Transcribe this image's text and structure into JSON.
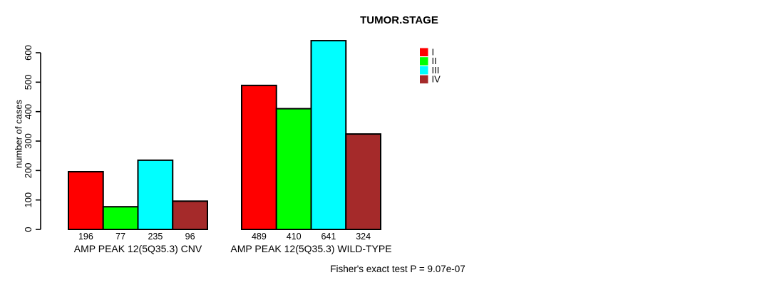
{
  "chart_data": {
    "type": "bar",
    "title": "TUMOR.STAGE",
    "xlabel": "",
    "ylabel": "number of cases",
    "ylim": [
      0,
      600
    ],
    "yticks": [
      0,
      100,
      200,
      300,
      400,
      500,
      600
    ],
    "grid": false,
    "legend_position": "top-right",
    "bar_value_labels_shown": true,
    "categories": [
      "AMP PEAK 12(5Q35.3) CNV",
      "AMP PEAK 12(5Q35.3) WILD-TYPE"
    ],
    "series": [
      {
        "name": "I",
        "color": "#FF0000",
        "values": [
          196,
          489
        ]
      },
      {
        "name": "II",
        "color": "#00FF00",
        "values": [
          77,
          410
        ]
      },
      {
        "name": "III",
        "color": "#00FFFF",
        "values": [
          235,
          641
        ]
      },
      {
        "name": "IV",
        "color": "#A52A2A",
        "values": [
          96,
          324
        ]
      }
    ],
    "annotation": "Fisher's exact test P = 9.07e-07"
  },
  "colors": {
    "axis": "#000000",
    "bar_border": "#000000",
    "background": "#FFFFFF"
  }
}
